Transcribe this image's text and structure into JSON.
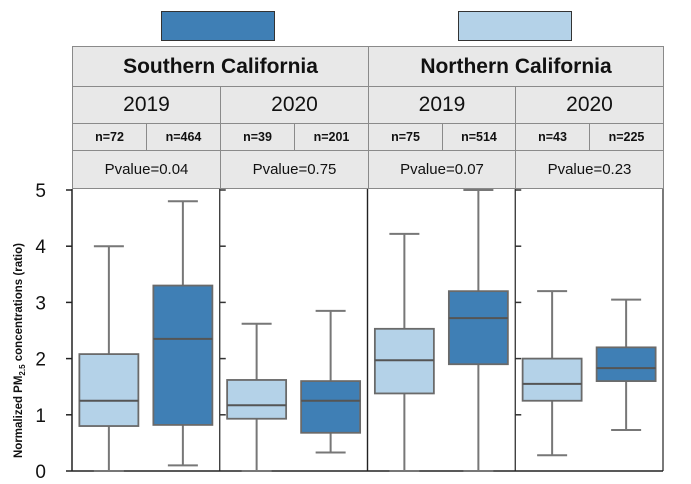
{
  "legend": [
    {
      "name": "dark-swatch",
      "color": "#3f7fb5"
    },
    {
      "name": "light-swatch",
      "color": "#b4d2e8"
    }
  ],
  "regions": [
    {
      "label": "Southern California",
      "years": [
        {
          "year": "2019",
          "n": [
            "n=72",
            "n=464"
          ],
          "pvalue": "Pvalue=0.04"
        },
        {
          "year": "2020",
          "n": [
            "n=39",
            "n=201"
          ],
          "pvalue": "Pvalue=0.75"
        }
      ]
    },
    {
      "label": "Northern California",
      "years": [
        {
          "year": "2019",
          "n": [
            "n=75",
            "n=514"
          ],
          "pvalue": "Pvalue=0.07"
        },
        {
          "year": "2020",
          "n": [
            "n=43",
            "n=225"
          ],
          "pvalue": "Pvalue=0.23"
        }
      ]
    }
  ],
  "chart_data": {
    "type": "box",
    "ylabel_main": "Normalized PM",
    "ylabel_sub": "2.5",
    "ylabel_rest": " concentrations (ratio)",
    "ylim": [
      0,
      5
    ],
    "yticks": [
      "0",
      "1",
      "2",
      "3",
      "4",
      "5"
    ],
    "colors": {
      "light": "#b4d2e8",
      "dark": "#3f7fb5",
      "whisker": "#777777"
    },
    "groups": [
      {
        "region": "Southern California",
        "year": "2019",
        "boxes": [
          {
            "color": "light",
            "min": 0.0,
            "q1": 0.8,
            "median": 1.25,
            "q3": 2.08,
            "max": 4.0
          },
          {
            "color": "dark",
            "min": 0.1,
            "q1": 0.82,
            "median": 2.35,
            "q3": 3.3,
            "max": 4.8
          }
        ]
      },
      {
        "region": "Southern California",
        "year": "2020",
        "boxes": [
          {
            "color": "light",
            "min": 0.0,
            "q1": 0.93,
            "median": 1.17,
            "q3": 1.62,
            "max": 2.62
          },
          {
            "color": "dark",
            "min": 0.33,
            "q1": 0.68,
            "median": 1.25,
            "q3": 1.6,
            "max": 2.85
          }
        ]
      },
      {
        "region": "Northern California",
        "year": "2019",
        "boxes": [
          {
            "color": "light",
            "min": 0.0,
            "q1": 1.38,
            "median": 1.97,
            "q3": 2.53,
            "max": 4.22
          },
          {
            "color": "dark",
            "min": 0.0,
            "q1": 1.9,
            "median": 2.72,
            "q3": 3.2,
            "max": 5.0
          }
        ]
      },
      {
        "region": "Northern California",
        "year": "2020",
        "boxes": [
          {
            "color": "light",
            "min": 0.28,
            "q1": 1.25,
            "median": 1.55,
            "q3": 2.0,
            "max": 3.2
          },
          {
            "color": "dark",
            "min": 0.73,
            "q1": 1.6,
            "median": 1.83,
            "q3": 2.2,
            "max": 3.05
          }
        ]
      }
    ]
  }
}
